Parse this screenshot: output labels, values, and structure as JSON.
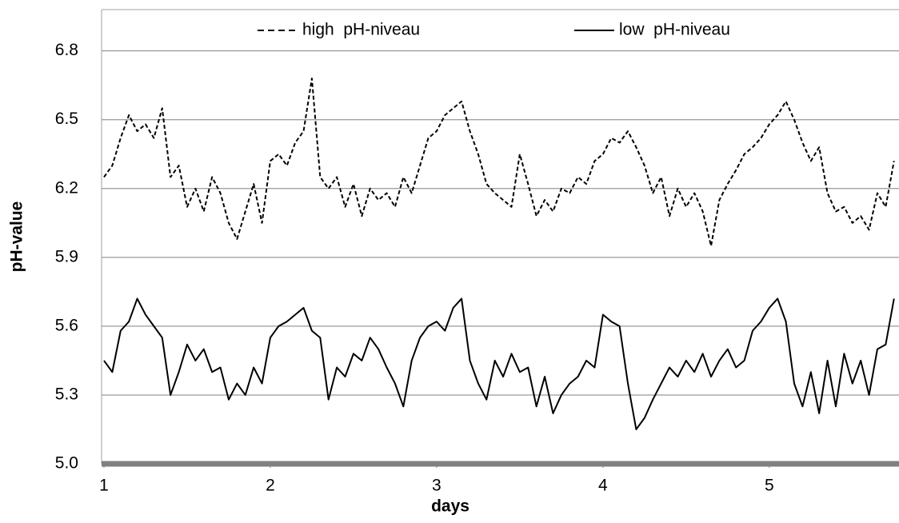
{
  "chart_data": {
    "type": "line",
    "x_label": "days",
    "y_label": "pH-value",
    "x": [
      1.0,
      1.05,
      1.1,
      1.15,
      1.2,
      1.25,
      1.3,
      1.35,
      1.4,
      1.45,
      1.5,
      1.55,
      1.6,
      1.65,
      1.7,
      1.75,
      1.8,
      1.85,
      1.9,
      1.95,
      2.0,
      2.05,
      2.1,
      2.15,
      2.2,
      2.25,
      2.3,
      2.35,
      2.4,
      2.45,
      2.5,
      2.55,
      2.6,
      2.65,
      2.7,
      2.75,
      2.8,
      2.85,
      2.9,
      2.95,
      3.0,
      3.05,
      3.1,
      3.15,
      3.2,
      3.25,
      3.3,
      3.35,
      3.4,
      3.45,
      3.5,
      3.55,
      3.6,
      3.65,
      3.7,
      3.75,
      3.8,
      3.85,
      3.9,
      3.95,
      4.0,
      4.05,
      4.1,
      4.15,
      4.2,
      4.25,
      4.3,
      4.35,
      4.4,
      4.45,
      4.5,
      4.55,
      4.6,
      4.65,
      4.7,
      4.75,
      4.8,
      4.85,
      4.9,
      4.95,
      5.0,
      5.05,
      5.1,
      5.15,
      5.2,
      5.25,
      5.3,
      5.35,
      5.4,
      5.45,
      5.5,
      5.55,
      5.6,
      5.65,
      5.7,
      5.75
    ],
    "series": [
      {
        "name": "high  pH-niveau",
        "color": "#000000",
        "line_style": "dashed",
        "values": [
          6.25,
          6.3,
          6.42,
          6.52,
          6.45,
          6.48,
          6.42,
          6.55,
          6.25,
          6.3,
          6.12,
          6.2,
          6.1,
          6.25,
          6.18,
          6.05,
          5.98,
          6.1,
          6.22,
          6.05,
          6.32,
          6.35,
          6.3,
          6.4,
          6.45,
          6.68,
          6.25,
          6.2,
          6.25,
          6.12,
          6.22,
          6.08,
          6.2,
          6.15,
          6.18,
          6.12,
          6.25,
          6.18,
          6.3,
          6.42,
          6.45,
          6.52,
          6.55,
          6.58,
          6.45,
          6.35,
          6.22,
          6.18,
          6.15,
          6.12,
          6.35,
          6.22,
          6.08,
          6.15,
          6.1,
          6.2,
          6.18,
          6.25,
          6.22,
          6.32,
          6.35,
          6.42,
          6.4,
          6.45,
          6.38,
          6.3,
          6.18,
          6.25,
          6.08,
          6.2,
          6.12,
          6.18,
          6.1,
          5.95,
          6.15,
          6.22,
          6.28,
          6.35,
          6.38,
          6.42,
          6.48,
          6.52,
          6.58,
          6.5,
          6.4,
          6.32,
          6.38,
          6.18,
          6.1,
          6.12,
          6.05,
          6.08,
          6.02,
          6.18,
          6.12,
          6.32
        ]
      },
      {
        "name": "low  pH-niveau",
        "color": "#000000",
        "line_style": "solid",
        "values": [
          5.45,
          5.4,
          5.58,
          5.62,
          5.72,
          5.65,
          5.6,
          5.55,
          5.3,
          5.4,
          5.52,
          5.45,
          5.5,
          5.4,
          5.42,
          5.28,
          5.35,
          5.3,
          5.42,
          5.35,
          5.55,
          5.6,
          5.62,
          5.65,
          5.68,
          5.58,
          5.55,
          5.28,
          5.42,
          5.38,
          5.48,
          5.45,
          5.55,
          5.5,
          5.42,
          5.35,
          5.25,
          5.45,
          5.55,
          5.6,
          5.62,
          5.58,
          5.68,
          5.72,
          5.45,
          5.35,
          5.28,
          5.45,
          5.38,
          5.48,
          5.4,
          5.42,
          5.25,
          5.38,
          5.22,
          5.3,
          5.35,
          5.38,
          5.45,
          5.42,
          5.65,
          5.62,
          5.6,
          5.35,
          5.15,
          5.2,
          5.28,
          5.35,
          5.42,
          5.38,
          5.45,
          5.4,
          5.48,
          5.38,
          5.45,
          5.5,
          5.42,
          5.45,
          5.58,
          5.62,
          5.68,
          5.72,
          5.62,
          5.35,
          5.25,
          5.4,
          5.22,
          5.45,
          5.25,
          5.48,
          5.35,
          5.45,
          5.3,
          5.5,
          5.52,
          5.72
        ]
      }
    ],
    "xlim": [
      1,
      5.78
    ],
    "xticks": [
      1,
      2,
      3,
      4,
      5
    ],
    "ylim": [
      5.0,
      6.98
    ],
    "yticks": [
      {
        "value": 5,
        "label": "5.0"
      },
      5.3,
      5.6,
      5.9,
      6.2,
      6.5,
      6.8
    ],
    "grid": true,
    "grid_color": "#808080",
    "legend": "top"
  }
}
